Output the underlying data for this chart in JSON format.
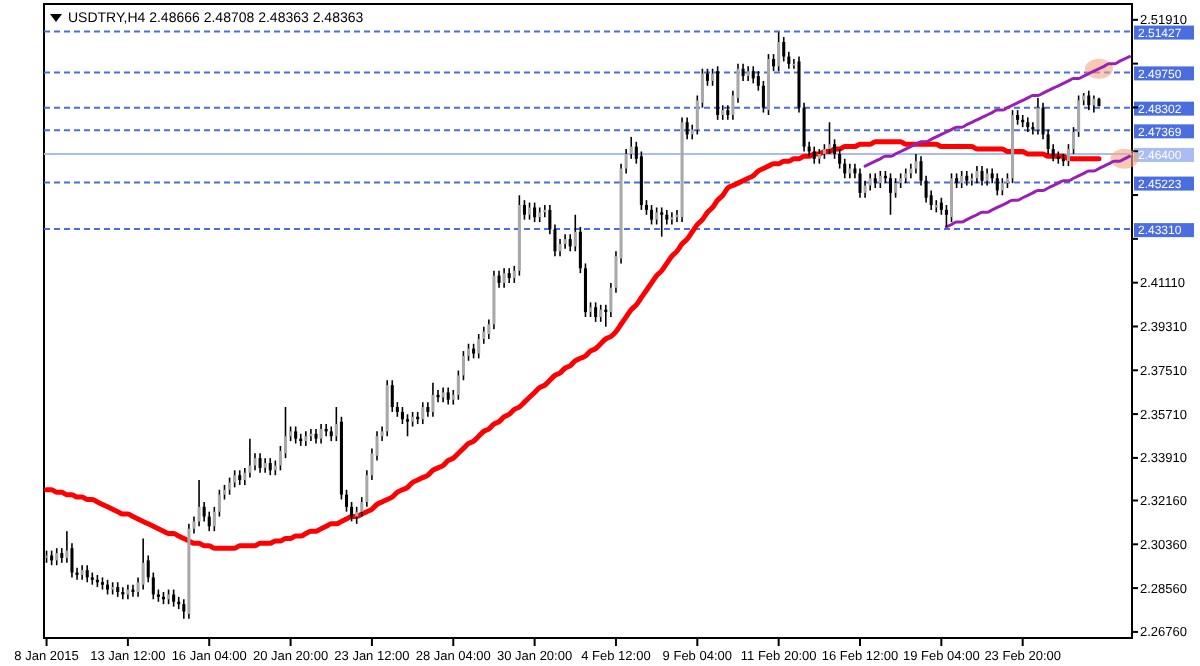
{
  "chart_data": {
    "type": "candlestick",
    "title": "USDTRY,H4 2.48666 2.48708 2.48363 2.48363",
    "categories": [
      "8 Jan 2015",
      null,
      null,
      null,
      null,
      null,
      null,
      null,
      null,
      null,
      null,
      null,
      null,
      null,
      null,
      null,
      "13 Jan 12:00",
      null,
      null,
      null,
      null,
      null,
      null,
      null,
      null,
      null,
      null,
      null,
      null,
      null,
      null,
      null,
      "16 Jan 04:00",
      null,
      null,
      null,
      null,
      null,
      null,
      null,
      null,
      null,
      null,
      null,
      null,
      null,
      null,
      null,
      "20 Jan 20:00",
      null,
      null,
      null,
      null,
      null,
      null,
      null,
      null,
      null,
      null,
      null,
      null,
      null,
      null,
      null,
      "23 Jan 12:00",
      null,
      null,
      null,
      null,
      null,
      null,
      null,
      null,
      null,
      null,
      null,
      null,
      null,
      null,
      null,
      "28 Jan 04:00",
      null,
      null,
      null,
      null,
      null,
      null,
      null,
      null,
      null,
      null,
      null,
      null,
      null,
      null,
      null,
      "30 Jan 20:00",
      null,
      null,
      null,
      null,
      null,
      null,
      null,
      null,
      null,
      null,
      null,
      null,
      null,
      null,
      null,
      "4 Feb 12:00",
      null,
      null,
      null,
      null,
      null,
      null,
      null,
      null,
      null,
      null,
      null,
      null,
      null,
      null,
      null,
      "9 Feb 04:00",
      null,
      null,
      null,
      null,
      null,
      null,
      null,
      null,
      null,
      null,
      null,
      null,
      null,
      null,
      null,
      "11 Feb 20:00",
      null,
      null,
      null,
      null,
      null,
      null,
      null,
      null,
      null,
      null,
      null,
      null,
      null,
      null,
      null,
      "16 Feb 12:00",
      null,
      null,
      null,
      null,
      null,
      null,
      null,
      null,
      null,
      null,
      null,
      null,
      null,
      null,
      null,
      "19 Feb 04:00",
      null,
      null,
      null,
      null,
      null,
      null,
      null,
      null,
      null,
      null,
      null,
      null,
      null,
      null,
      null,
      "23 Feb 20:00",
      null,
      null,
      null,
      null,
      null,
      null,
      null,
      null,
      null,
      null,
      null,
      null,
      null,
      null,
      null,
      null,
      null,
      null,
      null,
      null,
      null
    ],
    "ohlc": [
      [
        2.298,
        2.301,
        2.296,
        2.299
      ],
      [
        2.299,
        2.301,
        2.295,
        2.297
      ],
      [
        2.297,
        2.302,
        2.295,
        2.3
      ],
      [
        2.3,
        2.302,
        2.296,
        2.298
      ],
      [
        2.298,
        2.309,
        2.296,
        2.301
      ],
      [
        2.302,
        2.304,
        2.29,
        2.292
      ],
      [
        2.292,
        2.294,
        2.289,
        2.291
      ],
      [
        2.291,
        2.295,
        2.289,
        2.293
      ],
      [
        2.293,
        2.295,
        2.288,
        2.29
      ],
      [
        2.29,
        2.292,
        2.287,
        2.289
      ],
      [
        2.289,
        2.291,
        2.286,
        2.288
      ],
      [
        2.288,
        2.29,
        2.285,
        2.287
      ],
      [
        2.287,
        2.289,
        2.283,
        2.285
      ],
      [
        2.285,
        2.288,
        2.283,
        2.286
      ],
      [
        2.286,
        2.288,
        2.282,
        2.284
      ],
      [
        2.284,
        2.286,
        2.281,
        2.283
      ],
      [
        2.283,
        2.287,
        2.281,
        2.285
      ],
      [
        2.285,
        2.287,
        2.282,
        2.284
      ],
      [
        2.284,
        2.29,
        2.282,
        2.288
      ],
      [
        2.287,
        2.306,
        2.285,
        2.296
      ],
      [
        2.297,
        2.299,
        2.288,
        2.29
      ],
      [
        2.29,
        2.292,
        2.281,
        2.283
      ],
      [
        2.283,
        2.285,
        2.28,
        2.282
      ],
      [
        2.282,
        2.284,
        2.279,
        2.281
      ],
      [
        2.281,
        2.285,
        2.279,
        2.283
      ],
      [
        2.283,
        2.285,
        2.278,
        2.28
      ],
      [
        2.28,
        2.282,
        2.277,
        2.279
      ],
      [
        2.279,
        2.281,
        2.273,
        2.276
      ],
      [
        2.275,
        2.312,
        2.273,
        2.31
      ],
      [
        2.31,
        2.315,
        2.308,
        2.313
      ],
      [
        2.313,
        2.33,
        2.311,
        2.319
      ],
      [
        2.319,
        2.321,
        2.313,
        2.315
      ],
      [
        2.315,
        2.317,
        2.309,
        2.311
      ],
      [
        2.311,
        2.319,
        2.309,
        2.317
      ],
      [
        2.317,
        2.326,
        2.315,
        2.324
      ],
      [
        2.324,
        2.328,
        2.322,
        2.326
      ],
      [
        2.326,
        2.331,
        2.324,
        2.329
      ],
      [
        2.329,
        2.334,
        2.327,
        2.332
      ],
      [
        2.332,
        2.334,
        2.328,
        2.33
      ],
      [
        2.33,
        2.335,
        2.328,
        2.333
      ],
      [
        2.333,
        2.347,
        2.331,
        2.336
      ],
      [
        2.336,
        2.341,
        2.334,
        2.339
      ],
      [
        2.339,
        2.341,
        2.333,
        2.335
      ],
      [
        2.335,
        2.339,
        2.333,
        2.337
      ],
      [
        2.337,
        2.339,
        2.332,
        2.334
      ],
      [
        2.334,
        2.338,
        2.332,
        2.336
      ],
      [
        2.336,
        2.344,
        2.334,
        2.342
      ],
      [
        2.341,
        2.36,
        2.339,
        2.348
      ],
      [
        2.348,
        2.352,
        2.346,
        2.35
      ],
      [
        2.35,
        2.352,
        2.345,
        2.347
      ],
      [
        2.347,
        2.349,
        2.344,
        2.346
      ],
      [
        2.346,
        2.35,
        2.344,
        2.348
      ],
      [
        2.348,
        2.351,
        2.346,
        2.349
      ],
      [
        2.349,
        2.351,
        2.345,
        2.347
      ],
      [
        2.347,
        2.353,
        2.345,
        2.351
      ],
      [
        2.351,
        2.353,
        2.348,
        2.35
      ],
      [
        2.35,
        2.352,
        2.346,
        2.348
      ],
      [
        2.348,
        2.36,
        2.346,
        2.353
      ],
      [
        2.354,
        2.356,
        2.322,
        2.324
      ],
      [
        2.324,
        2.326,
        2.317,
        2.319
      ],
      [
        2.319,
        2.321,
        2.313,
        2.315
      ],
      [
        2.315,
        2.319,
        2.312,
        2.317
      ],
      [
        2.317,
        2.323,
        2.315,
        2.321
      ],
      [
        2.321,
        2.334,
        2.319,
        2.332
      ],
      [
        2.332,
        2.343,
        2.33,
        2.341
      ],
      [
        2.34,
        2.35,
        2.338,
        2.348
      ],
      [
        2.348,
        2.352,
        2.346,
        2.35
      ],
      [
        2.35,
        2.371,
        2.348,
        2.369
      ],
      [
        2.369,
        2.371,
        2.358,
        2.36
      ],
      [
        2.36,
        2.362,
        2.356,
        2.358
      ],
      [
        2.358,
        2.36,
        2.353,
        2.355
      ],
      [
        2.355,
        2.357,
        2.348,
        2.354
      ],
      [
        2.354,
        2.358,
        2.352,
        2.356
      ],
      [
        2.356,
        2.358,
        2.353,
        2.355
      ],
      [
        2.355,
        2.362,
        2.353,
        2.36
      ],
      [
        2.36,
        2.362,
        2.356,
        2.358
      ],
      [
        2.358,
        2.37,
        2.356,
        2.365
      ],
      [
        2.365,
        2.367,
        2.362,
        2.364
      ],
      [
        2.364,
        2.368,
        2.362,
        2.366
      ],
      [
        2.366,
        2.368,
        2.361,
        2.363
      ],
      [
        2.363,
        2.367,
        2.361,
        2.365
      ],
      [
        2.365,
        2.375,
        2.363,
        2.373
      ],
      [
        2.373,
        2.383,
        2.371,
        2.381
      ],
      [
        2.381,
        2.386,
        2.379,
        2.384
      ],
      [
        2.384,
        2.386,
        2.38,
        2.382
      ],
      [
        2.382,
        2.39,
        2.38,
        2.388
      ],
      [
        2.388,
        2.393,
        2.386,
        2.391
      ],
      [
        2.39,
        2.396,
        2.388,
        2.394
      ],
      [
        2.394,
        2.416,
        2.392,
        2.414
      ],
      [
        2.414,
        2.416,
        2.409,
        2.411
      ],
      [
        2.411,
        2.417,
        2.409,
        2.415
      ],
      [
        2.415,
        2.417,
        2.411,
        2.413
      ],
      [
        2.413,
        2.418,
        2.411,
        2.416
      ],
      [
        2.416,
        2.447,
        2.414,
        2.443
      ],
      [
        2.443,
        2.445,
        2.437,
        2.439
      ],
      [
        2.439,
        2.444,
        2.437,
        2.442
      ],
      [
        2.442,
        2.444,
        2.436,
        2.438
      ],
      [
        2.438,
        2.442,
        2.436,
        2.44
      ],
      [
        2.44,
        2.443,
        2.438,
        2.441
      ],
      [
        2.441,
        2.443,
        2.431,
        2.433
      ],
      [
        2.433,
        2.435,
        2.422,
        2.424
      ],
      [
        2.424,
        2.429,
        2.422,
        2.427
      ],
      [
        2.427,
        2.431,
        2.425,
        2.429
      ],
      [
        2.429,
        2.431,
        2.424,
        2.426
      ],
      [
        2.426,
        2.439,
        2.424,
        2.432
      ],
      [
        2.432,
        2.434,
        2.415,
        2.417
      ],
      [
        2.417,
        2.419,
        2.397,
        2.399
      ],
      [
        2.399,
        2.403,
        2.397,
        2.401
      ],
      [
        2.401,
        2.403,
        2.395,
        2.397
      ],
      [
        2.397,
        2.402,
        2.395,
        2.4
      ],
      [
        2.4,
        2.402,
        2.393,
        2.399
      ],
      [
        2.399,
        2.411,
        2.397,
        2.409
      ],
      [
        2.409,
        2.424,
        2.407,
        2.422
      ],
      [
        2.421,
        2.46,
        2.419,
        2.458
      ],
      [
        2.458,
        2.466,
        2.456,
        2.464
      ],
      [
        2.464,
        2.471,
        2.462,
        2.467
      ],
      [
        2.467,
        2.469,
        2.46,
        2.462
      ],
      [
        2.463,
        2.465,
        2.441,
        2.443
      ],
      [
        2.443,
        2.445,
        2.439,
        2.441
      ],
      [
        2.441,
        2.443,
        2.435,
        2.437
      ],
      [
        2.437,
        2.442,
        2.435,
        2.44
      ],
      [
        2.44,
        2.442,
        2.43,
        2.439
      ],
      [
        2.439,
        2.441,
        2.435,
        2.437
      ],
      [
        2.437,
        2.44,
        2.435,
        2.438
      ],
      [
        2.438,
        2.441,
        2.436,
        2.439
      ],
      [
        2.438,
        2.479,
        2.436,
        2.477
      ],
      [
        2.477,
        2.479,
        2.47,
        2.472
      ],
      [
        2.472,
        2.476,
        2.47,
        2.474
      ],
      [
        2.474,
        2.488,
        2.472,
        2.486
      ],
      [
        2.485,
        2.499,
        2.483,
        2.497
      ],
      [
        2.497,
        2.499,
        2.492,
        2.494
      ],
      [
        2.494,
        2.499,
        2.492,
        2.497
      ],
      [
        2.498,
        2.5,
        2.478,
        2.48
      ],
      [
        2.48,
        2.484,
        2.478,
        2.482
      ],
      [
        2.482,
        2.484,
        2.478,
        2.48
      ],
      [
        2.48,
        2.49,
        2.478,
        2.488
      ],
      [
        2.487,
        2.501,
        2.485,
        2.499
      ],
      [
        2.499,
        2.501,
        2.494,
        2.496
      ],
      [
        2.496,
        2.5,
        2.494,
        2.498
      ],
      [
        2.498,
        2.5,
        2.493,
        2.495
      ],
      [
        2.496,
        2.498,
        2.49,
        2.492
      ],
      [
        2.492,
        2.494,
        2.481,
        2.483
      ],
      [
        2.482,
        2.505,
        2.48,
        2.503
      ],
      [
        2.503,
        2.505,
        2.498,
        2.5
      ],
      [
        2.5,
        2.514,
        2.498,
        2.51
      ],
      [
        2.51,
        2.512,
        2.502,
        2.504
      ],
      [
        2.504,
        2.506,
        2.499,
        2.501
      ],
      [
        2.501,
        2.503,
        2.499,
        2.501
      ],
      [
        2.502,
        2.504,
        2.481,
        2.483
      ],
      [
        2.483,
        2.485,
        2.465,
        2.467
      ],
      [
        2.467,
        2.469,
        2.463,
        2.465
      ],
      [
        2.465,
        2.467,
        2.46,
        2.462
      ],
      [
        2.462,
        2.466,
        2.46,
        2.464
      ],
      [
        2.464,
        2.468,
        2.462,
        2.466
      ],
      [
        2.466,
        2.477,
        2.464,
        2.468
      ],
      [
        2.468,
        2.47,
        2.462,
        2.464
      ],
      [
        2.464,
        2.466,
        2.458,
        2.46
      ],
      [
        2.46,
        2.462,
        2.454,
        2.456
      ],
      [
        2.456,
        2.46,
        2.454,
        2.458
      ],
      [
        2.458,
        2.46,
        2.454,
        2.456
      ],
      [
        2.456,
        2.458,
        2.446,
        2.448
      ],
      [
        2.448,
        2.453,
        2.446,
        2.451
      ],
      [
        2.451,
        2.456,
        2.449,
        2.454
      ],
      [
        2.454,
        2.456,
        2.45,
        2.452
      ],
      [
        2.452,
        2.457,
        2.45,
        2.455
      ],
      [
        2.455,
        2.457,
        2.452,
        2.454
      ],
      [
        2.454,
        2.456,
        2.439,
        2.448
      ],
      [
        2.448,
        2.454,
        2.446,
        2.452
      ],
      [
        2.452,
        2.456,
        2.45,
        2.454
      ],
      [
        2.454,
        2.458,
        2.452,
        2.456
      ],
      [
        2.456,
        2.46,
        2.454,
        2.458
      ],
      [
        2.458,
        2.464,
        2.456,
        2.461
      ],
      [
        2.461,
        2.463,
        2.451,
        2.453
      ],
      [
        2.453,
        2.455,
        2.444,
        2.446
      ],
      [
        2.447,
        2.449,
        2.441,
        2.443
      ],
      [
        2.442,
        2.445,
        2.44,
        2.443
      ],
      [
        2.444,
        2.446,
        2.439,
        2.441
      ],
      [
        2.441,
        2.443,
        2.434,
        2.439
      ],
      [
        2.438,
        2.456,
        2.436,
        2.454
      ],
      [
        2.454,
        2.456,
        2.45,
        2.452
      ],
      [
        2.452,
        2.457,
        2.45,
        2.455
      ],
      [
        2.455,
        2.457,
        2.451,
        2.453
      ],
      [
        2.453,
        2.456,
        2.451,
        2.454
      ],
      [
        2.454,
        2.459,
        2.452,
        2.457
      ],
      [
        2.457,
        2.459,
        2.451,
        2.453
      ],
      [
        2.453,
        2.458,
        2.451,
        2.456
      ],
      [
        2.456,
        2.458,
        2.452,
        2.454
      ],
      [
        2.454,
        2.456,
        2.447,
        2.449
      ],
      [
        2.449,
        2.454,
        2.447,
        2.452
      ],
      [
        2.452,
        2.456,
        2.45,
        2.454
      ],
      [
        2.454,
        2.482,
        2.452,
        2.48
      ],
      [
        2.48,
        2.482,
        2.476,
        2.478
      ],
      [
        2.478,
        2.48,
        2.475,
        2.477
      ],
      [
        2.477,
        2.479,
        2.473,
        2.475
      ],
      [
        2.475,
        2.477,
        2.472,
        2.474
      ],
      [
        2.474,
        2.487,
        2.472,
        2.483
      ],
      [
        2.483,
        2.485,
        2.47,
        2.472
      ],
      [
        2.472,
        2.474,
        2.464,
        2.466
      ],
      [
        2.466,
        2.468,
        2.461,
        2.463
      ],
      [
        2.463,
        2.465,
        2.46,
        2.462
      ],
      [
        2.462,
        2.464,
        2.459,
        2.461
      ],
      [
        2.461,
        2.468,
        2.459,
        2.466
      ],
      [
        2.466,
        2.475,
        2.464,
        2.473
      ],
      [
        2.473,
        2.488,
        2.471,
        2.486
      ],
      [
        2.486,
        2.489,
        2.484,
        2.488
      ],
      [
        2.488,
        2.49,
        2.482,
        2.484
      ],
      [
        2.484,
        2.488,
        2.481,
        2.48666
      ],
      [
        2.48666,
        2.48708,
        2.48363,
        2.48363
      ],
      null,
      null,
      null,
      null,
      null,
      null
    ],
    "series": [
      {
        "type": "line",
        "color": "#ff0000",
        "values": [
          2.326,
          2.326,
          2.325,
          2.325,
          2.324,
          2.324,
          2.323,
          2.323,
          2.322,
          2.322,
          2.321,
          2.32,
          2.319,
          2.318,
          2.317,
          2.316,
          2.316,
          2.315,
          2.314,
          2.313,
          2.312,
          2.311,
          2.31,
          2.309,
          2.308,
          2.308,
          2.307,
          2.306,
          2.305,
          2.304,
          2.304,
          2.303,
          2.303,
          2.302,
          2.302,
          2.302,
          2.302,
          2.302,
          2.303,
          2.303,
          2.303,
          2.303,
          2.304,
          2.304,
          2.304,
          2.305,
          2.305,
          2.306,
          2.306,
          2.307,
          2.307,
          2.308,
          2.309,
          2.309,
          2.31,
          2.311,
          2.312,
          2.312,
          2.313,
          2.314,
          2.315,
          2.315,
          2.316,
          2.317,
          2.318,
          2.32,
          2.321,
          2.322,
          2.323,
          2.325,
          2.326,
          2.327,
          2.329,
          2.33,
          2.331,
          2.332,
          2.334,
          2.335,
          2.336,
          2.338,
          2.339,
          2.341,
          2.343,
          2.345,
          2.346,
          2.348,
          2.35,
          2.351,
          2.353,
          2.354,
          2.356,
          2.357,
          2.359,
          2.36,
          2.362,
          2.364,
          2.366,
          2.368,
          2.369,
          2.371,
          2.373,
          2.374,
          2.376,
          2.377,
          2.379,
          2.38,
          2.381,
          2.383,
          2.384,
          2.386,
          2.388,
          2.389,
          2.391,
          2.394,
          2.397,
          2.4,
          2.402,
          2.405,
          2.408,
          2.411,
          2.414,
          2.416,
          2.419,
          2.422,
          2.424,
          2.427,
          2.429,
          2.432,
          2.435,
          2.437,
          2.44,
          2.442,
          2.445,
          2.447,
          2.45,
          2.451,
          2.452,
          2.453,
          2.454,
          2.455,
          2.457,
          2.458,
          2.459,
          2.46,
          2.46,
          2.461,
          2.461,
          2.462,
          2.462,
          2.463,
          2.463,
          2.464,
          2.464,
          2.465,
          2.465,
          2.466,
          2.466,
          2.467,
          2.467,
          2.467,
          2.468,
          2.468,
          2.468,
          2.469,
          2.469,
          2.469,
          2.469,
          2.469,
          2.469,
          2.468,
          2.468,
          2.468,
          2.468,
          2.468,
          2.468,
          2.468,
          2.467,
          2.467,
          2.467,
          2.467,
          2.467,
          2.467,
          2.467,
          2.466,
          2.466,
          2.466,
          2.466,
          2.466,
          2.466,
          2.465,
          2.465,
          2.465,
          2.465,
          2.464,
          2.464,
          2.464,
          2.464,
          2.463,
          2.463,
          2.463,
          2.463,
          2.462,
          2.462,
          2.462,
          2.462,
          2.462,
          2.462,
          2.462,
          null,
          null,
          null,
          null,
          null,
          null
        ]
      },
      {
        "type": "line",
        "color": "#9b1fb5",
        "values": [
          null,
          null,
          null,
          null,
          null,
          null,
          null,
          null,
          null,
          null,
          null,
          null,
          null,
          null,
          null,
          null,
          null,
          null,
          null,
          null,
          null,
          null,
          null,
          null,
          null,
          null,
          null,
          null,
          null,
          null,
          null,
          null,
          null,
          null,
          null,
          null,
          null,
          null,
          null,
          null,
          null,
          null,
          null,
          null,
          null,
          null,
          null,
          null,
          null,
          null,
          null,
          null,
          null,
          null,
          null,
          null,
          null,
          null,
          null,
          null,
          null,
          null,
          null,
          null,
          null,
          null,
          null,
          null,
          null,
          null,
          null,
          null,
          null,
          null,
          null,
          null,
          null,
          null,
          null,
          null,
          null,
          null,
          null,
          null,
          null,
          null,
          null,
          null,
          null,
          null,
          null,
          null,
          null,
          null,
          null,
          null,
          null,
          null,
          null,
          null,
          null,
          null,
          null,
          null,
          null,
          null,
          null,
          null,
          null,
          null,
          null,
          null,
          null,
          null,
          null,
          null,
          null,
          null,
          null,
          null,
          null,
          null,
          null,
          null,
          null,
          null,
          null,
          null,
          null,
          null,
          null,
          null,
          null,
          null,
          null,
          null,
          null,
          null,
          null,
          null,
          null,
          null,
          null,
          null,
          null,
          null,
          null,
          null,
          null,
          null,
          null,
          null,
          null,
          null,
          null,
          null,
          null,
          null,
          null,
          null,
          null,
          2.459,
          2.46,
          2.461,
          2.462,
          2.463,
          2.463,
          2.464,
          2.465,
          2.466,
          2.467,
          2.468,
          2.469,
          2.469,
          2.47,
          2.471,
          2.472,
          2.473,
          2.474,
          2.475,
          2.475,
          2.476,
          2.477,
          2.478,
          2.479,
          2.48,
          2.481,
          2.482,
          2.482,
          2.483,
          2.484,
          2.485,
          2.486,
          2.487,
          2.488,
          2.488,
          2.489,
          2.49,
          2.491,
          2.492,
          2.493,
          2.494,
          2.495,
          2.495,
          2.496,
          2.497,
          2.498,
          2.499,
          2.5,
          2.501,
          2.501,
          2.502,
          2.503,
          2.504
        ]
      },
      {
        "type": "line",
        "color": "#9b1fb5",
        "values": [
          null,
          null,
          null,
          null,
          null,
          null,
          null,
          null,
          null,
          null,
          null,
          null,
          null,
          null,
          null,
          null,
          null,
          null,
          null,
          null,
          null,
          null,
          null,
          null,
          null,
          null,
          null,
          null,
          null,
          null,
          null,
          null,
          null,
          null,
          null,
          null,
          null,
          null,
          null,
          null,
          null,
          null,
          null,
          null,
          null,
          null,
          null,
          null,
          null,
          null,
          null,
          null,
          null,
          null,
          null,
          null,
          null,
          null,
          null,
          null,
          null,
          null,
          null,
          null,
          null,
          null,
          null,
          null,
          null,
          null,
          null,
          null,
          null,
          null,
          null,
          null,
          null,
          null,
          null,
          null,
          null,
          null,
          null,
          null,
          null,
          null,
          null,
          null,
          null,
          null,
          null,
          null,
          null,
          null,
          null,
          null,
          null,
          null,
          null,
          null,
          null,
          null,
          null,
          null,
          null,
          null,
          null,
          null,
          null,
          null,
          null,
          null,
          null,
          null,
          null,
          null,
          null,
          null,
          null,
          null,
          null,
          null,
          null,
          null,
          null,
          null,
          null,
          null,
          null,
          null,
          null,
          null,
          null,
          null,
          null,
          null,
          null,
          null,
          null,
          null,
          null,
          null,
          null,
          null,
          null,
          null,
          null,
          null,
          null,
          null,
          null,
          null,
          null,
          null,
          null,
          null,
          null,
          null,
          null,
          null,
          null,
          null,
          null,
          null,
          null,
          null,
          null,
          null,
          null,
          null,
          null,
          null,
          null,
          null,
          null,
          null,
          null,
          2.434,
          2.435,
          2.436,
          2.436,
          2.437,
          2.438,
          2.439,
          2.44,
          2.44,
          2.441,
          2.442,
          2.443,
          2.444,
          2.445,
          2.445,
          2.446,
          2.447,
          2.448,
          2.449,
          2.449,
          2.45,
          2.451,
          2.452,
          2.453,
          2.453,
          2.454,
          2.455,
          2.456,
          2.457,
          2.457,
          2.458,
          2.459,
          2.46,
          2.461,
          2.461,
          2.462,
          2.463
        ]
      }
    ],
    "ylim": [
      2.2651,
      2.5256
    ],
    "yticks": [
      {
        "value": 2.2676,
        "label": "2.26760"
      },
      {
        "value": 2.2856,
        "label": "2.28560"
      },
      {
        "value": 2.3036,
        "label": "2.30360"
      },
      {
        "value": 2.3216,
        "label": "2.32160"
      },
      {
        "value": 2.3391,
        "label": "2.33910"
      },
      {
        "value": 2.3571,
        "label": "2.35710"
      },
      {
        "value": 2.3751,
        "label": "2.37510"
      },
      {
        "value": 2.3931,
        "label": "2.39310"
      },
      {
        "value": 2.4111,
        "label": "2.41110"
      },
      {
        "value": 2.4291,
        "label": null
      },
      {
        "value": 2.4471,
        "label": null
      },
      {
        "value": 2.4651,
        "label": null
      },
      {
        "value": 2.4831,
        "label": null
      },
      {
        "value": 2.5011,
        "label": null
      },
      {
        "value": 2.5191,
        "label": "2.51910"
      }
    ],
    "ref_lines": [
      {
        "axis": "y",
        "value": 2.51427,
        "label": "2.51427",
        "color": "#4a6ee0",
        "line_style": "dashed"
      },
      {
        "axis": "y",
        "value": 2.4975,
        "label": "2.49750",
        "color": "#4a6ee0",
        "line_style": "dashed"
      },
      {
        "axis": "y",
        "value": 2.48302,
        "label": "2.48302",
        "color": "#4a6ee0",
        "line_style": "dashed"
      },
      {
        "axis": "y",
        "value": 2.47369,
        "label": "2.47369",
        "color": "#4a6ee0",
        "line_style": "dashed"
      },
      {
        "axis": "y",
        "value": 2.464,
        "label": "2.46400",
        "color": "#a9bdf2",
        "line_style": "solid"
      },
      {
        "axis": "y",
        "value": 2.45223,
        "label": "2.45223",
        "color": "#4a6ee0",
        "line_style": "dashed"
      },
      {
        "axis": "y",
        "value": 2.4331,
        "label": "2.43310",
        "color": "#4a6ee0",
        "line_style": "dashed"
      }
    ]
  }
}
